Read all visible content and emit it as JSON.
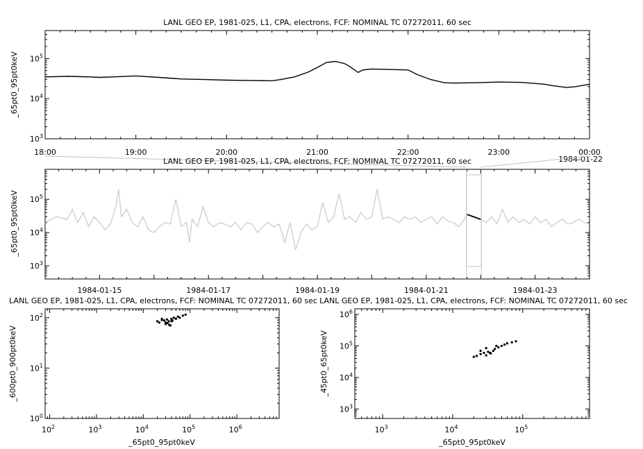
{
  "page": {
    "background": "#ffffff"
  },
  "chart_data": [
    {
      "type": "line",
      "title": "LANL GEO EP, 1981-025, L1, CPA, electrons, FCF: NOMINAL TC 07272011, 60 sec",
      "ylabel": "_65pt0_95pt0keV",
      "yscale": "log",
      "ylim": [
        1000,
        500000
      ],
      "x_ticks": [
        "18:00",
        "19:00",
        "20:00",
        "21:00",
        "22:00",
        "23:00",
        "00:00"
      ],
      "x_extra_label": "1984-01-22",
      "xlim": [
        18,
        24
      ],
      "line_color": "#000000",
      "series": [
        {
          "x": [
            18.0,
            18.25,
            18.5,
            18.6,
            18.75,
            19.0,
            19.25,
            19.5,
            19.75,
            20.0,
            20.25,
            20.5,
            20.6,
            20.75,
            20.9,
            21.0,
            21.1,
            21.2,
            21.3,
            21.35,
            21.45,
            21.5,
            21.6,
            21.75,
            22.0,
            22.1,
            22.25,
            22.4,
            22.5,
            22.75,
            23.0,
            23.25,
            23.5,
            23.6,
            23.75,
            23.85,
            24.0
          ],
          "y": [
            35000,
            36000,
            35000,
            34000,
            35000,
            37000,
            34000,
            31000,
            30000,
            29000,
            28500,
            28000,
            30000,
            35000,
            46000,
            60000,
            80000,
            85000,
            75000,
            65000,
            45000,
            52000,
            55000,
            54000,
            52000,
            40000,
            30000,
            25000,
            24500,
            25000,
            26000,
            25500,
            23000,
            21000,
            19000,
            20000,
            23000
          ]
        }
      ]
    },
    {
      "type": "line",
      "title": "LANL GEO EP, 1981-025, L1, CPA, electrons, FCF: NOMINAL TC 07272011, 60 sec",
      "ylabel": "_65pt0_95pt0keV",
      "yscale": "log",
      "ylim": [
        400,
        800000
      ],
      "x_ticks": [
        "1984-01-15",
        "1984-01-17",
        "1984-01-19",
        "1984-01-21",
        "1984-01-23"
      ],
      "xlim": [
        14,
        24
      ],
      "highlight_range": [
        21.75,
        22.0
      ],
      "context_color": "#c8c8c8",
      "highlight_color": "#000000",
      "series": [
        {
          "x": [
            14.0,
            14.2,
            14.4,
            14.5,
            14.6,
            14.7,
            14.8,
            14.9,
            15.0,
            15.1,
            15.2,
            15.3,
            15.35,
            15.4,
            15.5,
            15.6,
            15.7,
            15.8,
            15.9,
            16.0,
            16.1,
            16.2,
            16.3,
            16.4,
            16.5,
            16.6,
            16.65,
            16.7,
            16.8,
            16.9,
            17.0,
            17.1,
            17.2,
            17.3,
            17.4,
            17.5,
            17.6,
            17.7,
            17.8,
            17.9,
            18.0,
            18.1,
            18.2,
            18.3,
            18.4,
            18.5,
            18.6,
            18.7,
            18.8,
            18.9,
            19.0,
            19.1,
            19.2,
            19.3,
            19.4,
            19.5,
            19.6,
            19.7,
            19.8,
            19.9,
            20.0,
            20.1,
            20.2,
            20.3,
            20.4,
            20.5,
            20.6,
            20.7,
            20.8,
            20.9,
            21.0,
            21.1,
            21.2,
            21.3,
            21.4,
            21.5,
            21.6,
            21.7,
            21.75,
            22.0,
            22.1,
            22.2,
            22.3,
            22.4,
            22.5,
            22.6,
            22.7,
            22.8,
            22.9,
            23.0,
            23.1,
            23.2,
            23.3,
            23.4,
            23.5,
            23.6,
            23.7,
            23.8,
            23.9,
            24.0
          ],
          "y": [
            20000,
            30000,
            25000,
            50000,
            20000,
            40000,
            15000,
            30000,
            20000,
            12000,
            18000,
            60000,
            200000,
            30000,
            50000,
            20000,
            15000,
            30000,
            12000,
            10000,
            15000,
            20000,
            18000,
            100000,
            15000,
            20000,
            5000,
            25000,
            15000,
            60000,
            20000,
            15000,
            20000,
            18000,
            15000,
            20000,
            12000,
            20000,
            18000,
            10000,
            15000,
            20000,
            15000,
            18000,
            5000,
            20000,
            3000,
            10000,
            18000,
            12000,
            15000,
            80000,
            20000,
            30000,
            150000,
            25000,
            30000,
            20000,
            40000,
            25000,
            30000,
            200000,
            25000,
            30000,
            25000,
            20000,
            30000,
            25000,
            30000,
            20000,
            25000,
            30000,
            18000,
            30000,
            22000,
            20000,
            15000,
            25000,
            35000,
            25000,
            20000,
            30000,
            18000,
            50000,
            20000,
            30000,
            20000,
            25000,
            18000,
            30000,
            20000,
            25000,
            15000,
            20000,
            25000,
            18000,
            20000,
            25000,
            20000,
            18000
          ]
        }
      ]
    },
    {
      "type": "scatter",
      "title": "LANL GEO EP, 1981-025, L1, CPA, electrons, FCF: NOMINAL TC 07272011, 60 sec",
      "xlabel": "_65pt0_95pt0keV",
      "ylabel": "_600pt0_900pt0keV",
      "xscale": "log",
      "yscale": "log",
      "xlim": [
        80,
        8000000
      ],
      "ylim": [
        1,
        150
      ],
      "point_color": "#000000",
      "x": [
        20000,
        22000,
        25000,
        28000,
        30000,
        32000,
        35000,
        38000,
        40000,
        45000,
        50000,
        55000,
        60000,
        70000,
        80000,
        25000,
        30000,
        40000,
        33000,
        36000,
        42000
      ],
      "y": [
        85,
        80,
        90,
        88,
        75,
        92,
        85,
        70,
        95,
        100,
        95,
        105,
        100,
        110,
        115,
        95,
        80,
        85,
        78,
        72,
        88
      ]
    },
    {
      "type": "scatter",
      "title": "LANL GEO EP, 1981-025, L1, CPA, electrons, FCF: NOMINAL TC 07272011, 60 sec",
      "xlabel": "_65pt0_95pt0keV",
      "ylabel": "_45pt0_65pt0keV",
      "xscale": "log",
      "yscale": "log",
      "xlim": [
        400,
        900000
      ],
      "ylim": [
        500,
        1500000
      ],
      "point_color": "#000000",
      "x": [
        20000,
        22000,
        25000,
        28000,
        30000,
        32000,
        35000,
        38000,
        40000,
        45000,
        50000,
        55000,
        60000,
        70000,
        80000,
        25000,
        30000,
        42000,
        34000
      ],
      "y": [
        45000,
        48000,
        55000,
        60000,
        50000,
        65000,
        58000,
        70000,
        80000,
        90000,
        100000,
        110000,
        120000,
        130000,
        140000,
        70000,
        85000,
        100000,
        60000
      ]
    }
  ]
}
